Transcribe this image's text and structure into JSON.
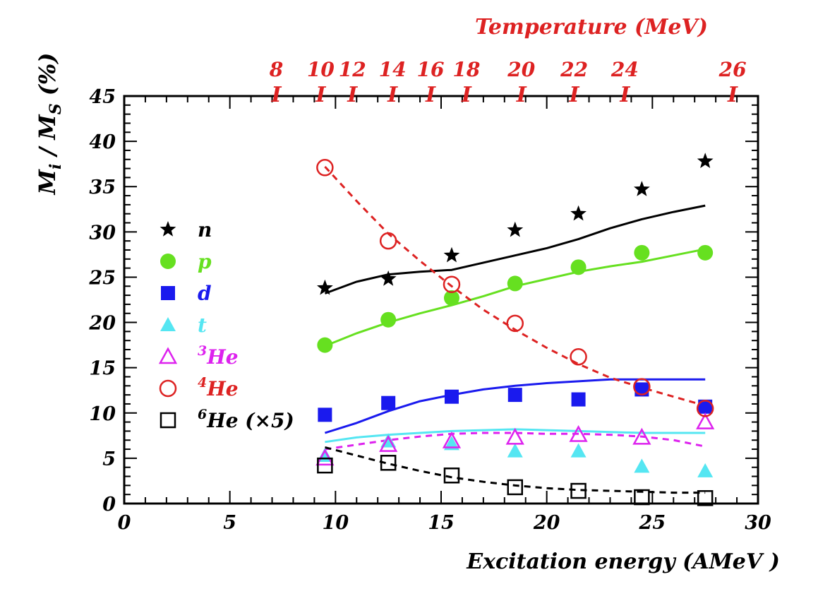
{
  "chart_data": {
    "type": "scatter",
    "xlabel": "Excitation energy (AMeV )",
    "ylabel": "M_i / M_S (%)",
    "top_axis_title": "Temperature (MeV)",
    "xlim": [
      0,
      30
    ],
    "ylim": [
      0,
      45
    ],
    "x_ticks": [
      "0",
      "5",
      "10",
      "15",
      "20",
      "25",
      "30"
    ],
    "y_ticks": [
      "0",
      "5",
      "10",
      "15",
      "20",
      "25",
      "30",
      "35",
      "40",
      "45"
    ],
    "top_ticks": [
      {
        "label": "8",
        "x": 7.2
      },
      {
        "label": "10",
        "x": 9.3
      },
      {
        "label": "12",
        "x": 10.8
      },
      {
        "label": "14",
        "x": 12.7
      },
      {
        "label": "16",
        "x": 14.5
      },
      {
        "label": "18",
        "x": 16.2
      },
      {
        "label": "20",
        "x": 18.8
      },
      {
        "label": "22",
        "x": 21.3
      },
      {
        "label": "24",
        "x": 23.7
      },
      {
        "label": "26",
        "x": 28.8
      }
    ],
    "legend_position": "left",
    "series": [
      {
        "name": "n",
        "color": "#000000",
        "marker": "star",
        "x": [
          9.5,
          12.5,
          15.5,
          18.5,
          21.5,
          24.5,
          27.5
        ],
        "y": [
          23.8,
          24.8,
          27.4,
          30.2,
          32.0,
          34.7,
          37.8
        ],
        "curve": {
          "style": "solid",
          "x": [
            9.5,
            11,
            12.5,
            14,
            15.5,
            17,
            18.5,
            20,
            21.5,
            23,
            24.5,
            26,
            27.5
          ],
          "y": [
            23.2,
            24.5,
            25.3,
            25.6,
            25.8,
            26.6,
            27.4,
            28.2,
            29.2,
            30.4,
            31.4,
            32.2,
            32.9
          ]
        }
      },
      {
        "name": "p",
        "color": "#66e020",
        "marker": "circle-filled",
        "x": [
          9.5,
          12.5,
          15.5,
          18.5,
          21.5,
          24.5,
          27.5
        ],
        "y": [
          17.5,
          20.3,
          22.7,
          24.3,
          26.1,
          27.7,
          27.7
        ],
        "curve": {
          "style": "solid",
          "x": [
            9.5,
            11,
            12.5,
            14,
            15.5,
            17,
            18.5,
            20,
            21.5,
            23,
            24.5,
            26,
            27.5
          ],
          "y": [
            17.4,
            18.8,
            20.0,
            21.0,
            21.9,
            22.9,
            24.0,
            24.8,
            25.6,
            26.2,
            26.7,
            27.4,
            28.1
          ]
        }
      },
      {
        "name": "d",
        "color": "#1a1aee",
        "marker": "square-filled",
        "x": [
          9.5,
          12.5,
          15.5,
          18.5,
          21.5,
          24.5,
          27.5
        ],
        "y": [
          9.8,
          11.1,
          11.8,
          12.0,
          11.5,
          12.6,
          10.7
        ],
        "curve": {
          "style": "solid",
          "x": [
            9.5,
            11,
            12.5,
            14,
            15.5,
            17,
            18.5,
            20,
            21.5,
            23,
            24.5,
            26,
            27.5
          ],
          "y": [
            7.8,
            8.9,
            10.2,
            11.3,
            12.0,
            12.6,
            13.0,
            13.3,
            13.5,
            13.7,
            13.7,
            13.7,
            13.7
          ]
        }
      },
      {
        "name": "t",
        "color": "#55e6f2",
        "marker": "triangle-filled",
        "x": [
          9.5,
          12.5,
          15.5,
          18.5,
          21.5,
          24.5,
          27.5
        ],
        "y": [
          5.3,
          6.9,
          6.6,
          5.8,
          5.8,
          4.1,
          3.6
        ],
        "curve": {
          "style": "solid",
          "x": [
            9.5,
            11,
            12.5,
            14,
            15.5,
            17,
            18.5,
            20,
            21.5,
            23,
            24.5,
            26,
            27.5
          ],
          "y": [
            6.8,
            7.3,
            7.6,
            7.8,
            8.0,
            8.1,
            8.2,
            8.1,
            8.0,
            7.9,
            7.8,
            7.8,
            7.8
          ]
        }
      },
      {
        "name": "3He",
        "label_sup": "3",
        "label_main": "He",
        "color": "#dd22ee",
        "marker": "triangle-open",
        "x": [
          9.5,
          12.5,
          15.5,
          18.5,
          21.5,
          24.5,
          27.5
        ],
        "y": [
          5.0,
          6.5,
          6.9,
          7.3,
          7.6,
          7.3,
          9.0
        ],
        "curve": {
          "style": "dashed",
          "x": [
            9.5,
            11,
            12.5,
            14,
            15.5,
            17,
            18.5,
            20,
            21.5,
            23,
            24.5,
            26,
            27.5
          ],
          "y": [
            6.0,
            6.5,
            7.0,
            7.4,
            7.7,
            7.8,
            7.8,
            7.7,
            7.7,
            7.6,
            7.4,
            7.0,
            6.3
          ]
        }
      },
      {
        "name": "4He",
        "label_sup": "4",
        "label_main": "He",
        "color": "#dd2222",
        "marker": "circle-open",
        "x": [
          9.5,
          12.5,
          15.5,
          18.5,
          21.5,
          24.5,
          27.5
        ],
        "y": [
          37.1,
          29.0,
          24.2,
          19.9,
          16.2,
          12.9,
          10.5
        ],
        "curve": {
          "style": "dashed",
          "x": [
            9.5,
            11,
            12.5,
            14,
            15.5,
            17,
            18.5,
            20,
            21.5,
            23,
            24.5,
            26,
            27.5
          ],
          "y": [
            37.2,
            33.4,
            29.8,
            26.8,
            24.0,
            21.4,
            19.2,
            17.2,
            15.4,
            13.9,
            12.8,
            11.8,
            10.8
          ]
        }
      },
      {
        "name": "6He (×5)",
        "label_sup": "6",
        "label_main": "He (×5)",
        "color": "#000000",
        "marker": "square-open",
        "x": [
          9.5,
          12.5,
          15.5,
          18.5,
          21.5,
          24.5,
          27.5
        ],
        "y": [
          4.2,
          4.5,
          3.1,
          1.8,
          1.4,
          0.7,
          0.6
        ],
        "curve": {
          "style": "dashed",
          "x": [
            9.5,
            11,
            12.5,
            14,
            15.5,
            17,
            18.5,
            20,
            21.5,
            23,
            24.5,
            26,
            27.5
          ],
          "y": [
            6.2,
            5.3,
            4.4,
            3.6,
            2.9,
            2.4,
            2.0,
            1.7,
            1.5,
            1.4,
            1.3,
            1.2,
            1.2
          ]
        }
      }
    ]
  }
}
